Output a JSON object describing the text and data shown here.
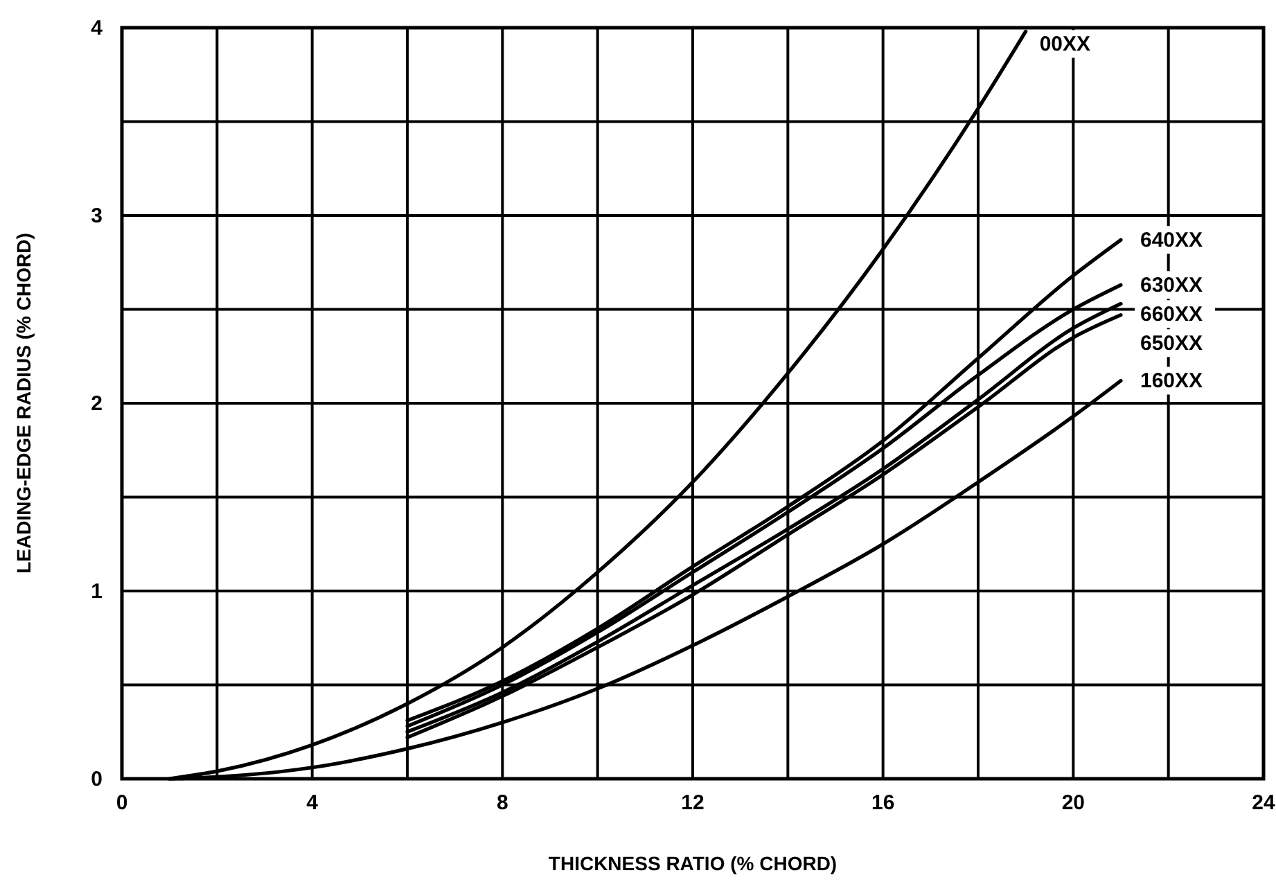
{
  "chart_data": {
    "type": "line",
    "xlabel": "THICKNESS RATIO  (% CHORD)",
    "ylabel": "LEADING-EDGE RADIUS (% CHORD)",
    "xlim": [
      0,
      24
    ],
    "ylim": [
      0,
      4
    ],
    "xticks": [
      0,
      {
        "value": 2,
        "label": null
      },
      4,
      {
        "value": 6,
        "label": null
      },
      8,
      {
        "value": 10,
        "label": null
      },
      12,
      {
        "value": 14,
        "label": null
      },
      16,
      {
        "value": 18,
        "label": null
      },
      20,
      {
        "value": 22,
        "label": null
      },
      24
    ],
    "yticks": [
      0,
      {
        "value": 0.5,
        "label": null
      },
      1,
      {
        "value": 1.5,
        "label": null
      },
      2,
      {
        "value": 2.5,
        "label": null
      },
      3,
      {
        "value": 3.5,
        "label": null
      },
      4
    ],
    "grid": true,
    "marker": "none",
    "line_style": "solid",
    "series": [
      {
        "name": "00XX",
        "color": "#000000",
        "x": [
          1,
          2,
          4,
          6,
          8,
          10,
          12,
          14,
          16,
          18,
          19
        ],
        "values": [
          0,
          0.04,
          0.18,
          0.4,
          0.7,
          1.1,
          1.58,
          2.16,
          2.82,
          3.57,
          3.98
        ]
      },
      {
        "name": "640XX",
        "color": "#000000",
        "x": [
          6,
          8,
          10,
          12,
          14,
          16,
          18,
          20,
          21
        ],
        "values": [
          0.31,
          0.52,
          0.8,
          1.13,
          1.45,
          1.8,
          2.24,
          2.68,
          2.87
        ]
      },
      {
        "name": "630XX",
        "color": "#000000",
        "x": [
          6,
          8,
          10,
          12,
          14,
          16,
          18,
          20,
          21
        ],
        "values": [
          0.28,
          0.5,
          0.78,
          1.1,
          1.42,
          1.76,
          2.15,
          2.5,
          2.63
        ]
      },
      {
        "name": "660XX",
        "color": "#000000",
        "x": [
          6,
          8,
          10,
          12,
          14,
          16,
          18,
          20,
          21
        ],
        "values": [
          0.25,
          0.46,
          0.73,
          1.03,
          1.33,
          1.65,
          2.02,
          2.4,
          2.53
        ]
      },
      {
        "name": "650XX",
        "color": "#000000",
        "x": [
          6,
          8,
          10,
          12,
          14,
          16,
          18,
          20,
          21
        ],
        "values": [
          0.22,
          0.44,
          0.7,
          0.98,
          1.3,
          1.62,
          1.98,
          2.35,
          2.47
        ]
      },
      {
        "name": "160XX",
        "color": "#000000",
        "x": [
          1,
          2,
          4,
          6,
          8,
          10,
          12,
          14,
          16,
          18,
          20,
          21
        ],
        "values": [
          0,
          0.01,
          0.06,
          0.16,
          0.3,
          0.48,
          0.71,
          0.97,
          1.25,
          1.58,
          1.93,
          2.12
        ]
      }
    ]
  }
}
